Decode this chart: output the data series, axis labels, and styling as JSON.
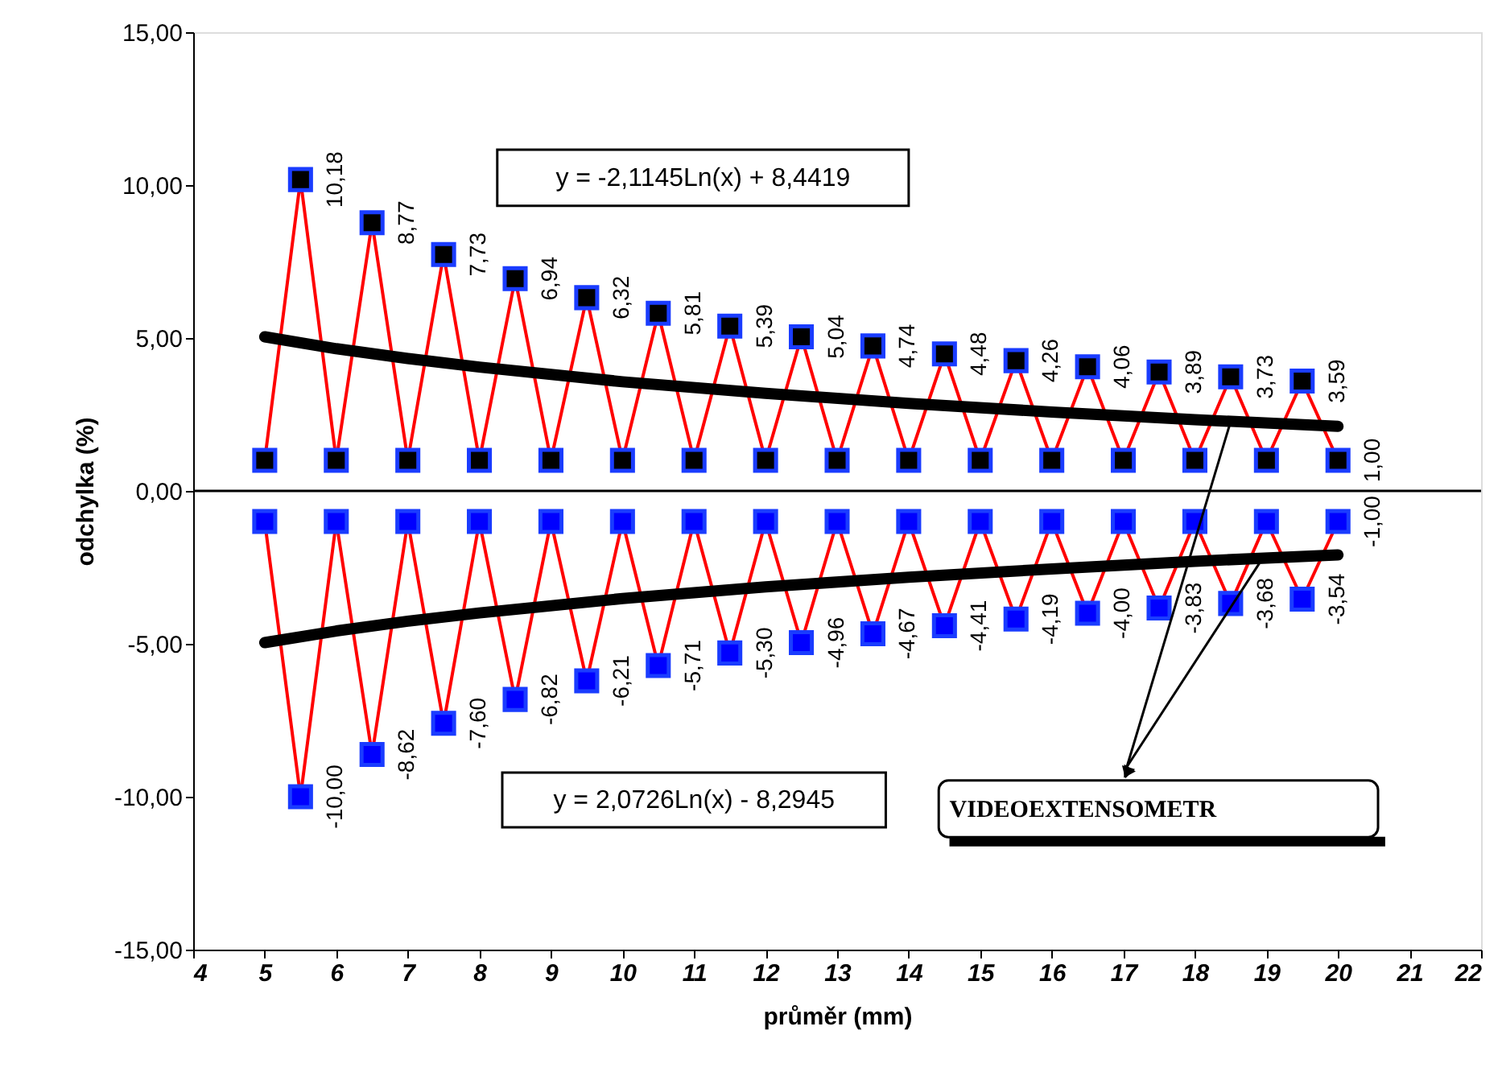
{
  "chart_data": {
    "type": "line",
    "xlabel": "průměr (mm)",
    "ylabel": "odchylka (%)",
    "xlim": [
      4,
      22
    ],
    "xticks": [
      4,
      5,
      6,
      7,
      8,
      9,
      10,
      11,
      12,
      13,
      14,
      15,
      16,
      17,
      18,
      19,
      20,
      21,
      22
    ],
    "ylim": [
      -15,
      15
    ],
    "yticks": [
      {
        "value": -15,
        "label": "-15,00"
      },
      {
        "value": -10,
        "label": "-10,00"
      },
      {
        "value": -5,
        "label": "-5,00"
      },
      {
        "value": 0,
        "label": "0,00"
      },
      {
        "value": 5,
        "label": "5,00"
      },
      {
        "value": 10,
        "label": "10,00"
      },
      {
        "value": 15,
        "label": "15,00"
      }
    ],
    "grid": false,
    "marker": "square",
    "line_style": "solid",
    "ref_lines": [
      {
        "axis": "y",
        "value": 0,
        "color": "#000000"
      }
    ],
    "annotations": [
      "y = -2,1145Ln(x) + 8,4419",
      "y = 2,0726Ln(x) - 8,2945",
      {
        "text": "VIDEOEXTENSOMETR",
        "x": 18.5,
        "y": 2.27
      }
    ],
    "series": [
      {
        "color": "#ff0000",
        "x": [
          5,
          5.5,
          6,
          6.5,
          7,
          7.5,
          8,
          8.5,
          9,
          9.5,
          10,
          10.5,
          11,
          11.5,
          12,
          12.5,
          13,
          13.5,
          14,
          14.5,
          15,
          15.5,
          16,
          16.5,
          17,
          17.5,
          18,
          18.5,
          19,
          19.5,
          20
        ],
        "values": [
          1.0,
          10.18,
          1.0,
          8.77,
          1.0,
          7.73,
          1.0,
          6.94,
          1.0,
          6.32,
          1.0,
          5.81,
          1.0,
          5.39,
          1.0,
          5.04,
          1.0,
          4.74,
          1.0,
          4.48,
          1.0,
          4.26,
          1.0,
          4.06,
          1.0,
          3.89,
          1.0,
          3.73,
          1.0,
          3.59,
          1.0
        ],
        "value_labels": [
          null,
          "10,18",
          null,
          "8,77",
          null,
          "7,73",
          null,
          "6,94",
          null,
          "6,32",
          null,
          "5,81",
          null,
          "5,39",
          null,
          "5,04",
          null,
          "4,74",
          null,
          "4,48",
          null,
          "4,26",
          null,
          "4,06",
          null,
          "3,89",
          null,
          "3,73",
          null,
          "3,59",
          "1,00"
        ]
      },
      {
        "color": "#ff0000",
        "x": [
          5,
          5.5,
          6,
          6.5,
          7,
          7.5,
          8,
          8.5,
          9,
          9.5,
          10,
          10.5,
          11,
          11.5,
          12,
          12.5,
          13,
          13.5,
          14,
          14.5,
          15,
          15.5,
          16,
          16.5,
          17,
          17.5,
          18,
          18.5,
          19,
          19.5,
          20
        ],
        "values": [
          -1.0,
          -10.0,
          -1.0,
          -8.62,
          -1.0,
          -7.6,
          -1.0,
          -6.82,
          -1.0,
          -6.21,
          -1.0,
          -5.71,
          -1.0,
          -5.3,
          -1.0,
          -4.96,
          -1.0,
          -4.67,
          -1.0,
          -4.41,
          -1.0,
          -4.19,
          -1.0,
          -4.0,
          -1.0,
          -3.83,
          -1.0,
          -3.68,
          -1.0,
          -3.54,
          -1.0
        ],
        "value_labels": [
          null,
          "-10,00",
          null,
          "-8,62",
          null,
          "-7,60",
          null,
          "-6,82",
          null,
          "-6,21",
          null,
          "-5,71",
          null,
          "-5,30",
          null,
          "-4,96",
          null,
          "-4,67",
          null,
          "-4,41",
          null,
          "-4,19",
          null,
          "-4,00",
          null,
          "-3,83",
          null,
          "-3,68",
          null,
          "-3,54",
          "-1,00"
        ]
      },
      {
        "color": "#000000",
        "marker": "none",
        "x": [
          5,
          6,
          7,
          8,
          10,
          12,
          14,
          16,
          18,
          20
        ],
        "values": [
          5.04,
          4.65,
          4.33,
          4.05,
          3.57,
          3.19,
          2.86,
          2.58,
          2.33,
          2.11
        ]
      },
      {
        "color": "#000000",
        "marker": "none",
        "x": [
          5,
          6,
          7,
          8,
          10,
          12,
          14,
          16,
          18,
          20
        ],
        "values": [
          -4.96,
          -4.58,
          -4.26,
          -3.99,
          -3.52,
          -3.14,
          -2.82,
          -2.55,
          -2.3,
          -2.09
        ]
      }
    ]
  }
}
